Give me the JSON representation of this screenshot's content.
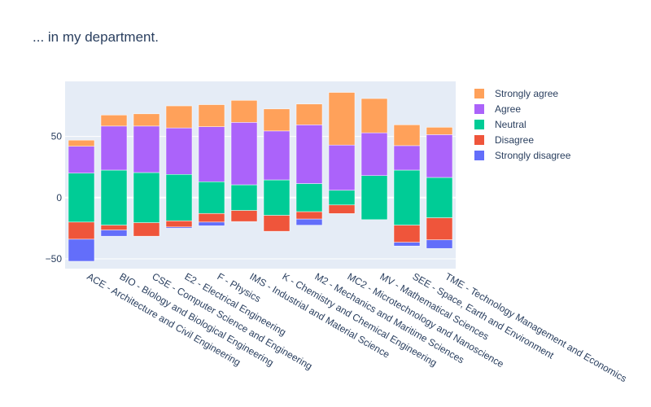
{
  "chart_data": {
    "type": "bar",
    "barmode": "diverging-stacked",
    "title": "... in my department.",
    "xlabel": "",
    "ylabel": "",
    "ylim": [
      -58,
      95
    ],
    "yticks": [
      -50,
      0,
      50
    ],
    "grid": true,
    "legend_position": "top-right",
    "categories": [
      "ACE - Architecture and Civil Engineering",
      "BIO - Biology and Biological Engineering",
      "CSE - Computer Science and Engineering",
      "E2 - Electrical Engineering",
      "F - Physics",
      "IMS - Industrial and Material Science",
      "K - Chemistry and Chemical Engineering",
      "M2 - Mechanics and Maritime Sciences",
      "MC2 - Microtechnology and Nanoscience",
      "MV - Mathematical Sciences",
      "SEE - Space, Earth and Environment",
      "TME - Technology Management and Economics"
    ],
    "neutral": [
      40,
      45,
      41,
      38,
      26,
      21,
      29,
      23,
      12,
      36,
      45,
      33
    ],
    "series_order_up": [
      "Agree",
      "Strongly agree"
    ],
    "series_order_down": [
      "Disagree",
      "Strongly disagree"
    ],
    "series": [
      {
        "name": "Strongly agree",
        "color": "#FFA15A",
        "values": [
          5,
          9,
          10,
          18,
          18,
          18,
          18,
          17,
          43,
          28,
          17,
          6
        ]
      },
      {
        "name": "Agree",
        "color": "#AB63FA",
        "values": [
          22,
          36,
          38,
          38,
          45,
          51,
          40,
          48,
          37,
          35,
          20,
          35
        ]
      },
      {
        "name": "Neutral",
        "color": "#00CC96",
        "values": [
          40,
          45,
          41,
          38,
          26,
          21,
          29,
          23,
          12,
          36,
          45,
          33
        ]
      },
      {
        "name": "Disagree",
        "color": "#EF553B",
        "values": [
          14,
          4,
          11,
          5,
          7,
          9,
          13,
          6,
          7,
          0,
          14,
          18
        ]
      },
      {
        "name": "Strongly disagree",
        "color": "#636EFA",
        "values": [
          18,
          5,
          0,
          1,
          3,
          0,
          0,
          5,
          0,
          0,
          3,
          7
        ]
      }
    ],
    "legend": [
      "Strongly agree",
      "Agree",
      "Neutral",
      "Disagree",
      "Strongly disagree"
    ]
  }
}
